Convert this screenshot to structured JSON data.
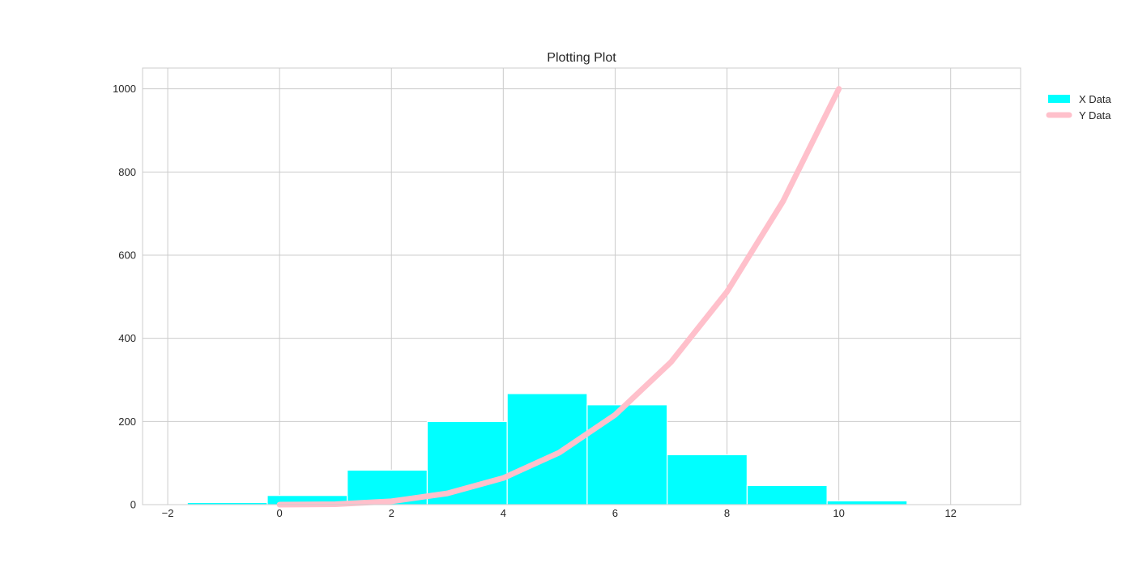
{
  "chart_data": {
    "type": "bar",
    "title": "Plotting Plot",
    "xlabel": "",
    "ylabel": "",
    "xlim": [
      -2.45,
      13.25
    ],
    "ylim": [
      0,
      1050
    ],
    "x_ticks": [
      -2,
      0,
      2,
      4,
      6,
      8,
      10,
      12
    ],
    "x_tick_labels": [
      "−2",
      "0",
      "2",
      "4",
      "6",
      "8",
      "10",
      "12"
    ],
    "y_ticks": [
      0,
      200,
      400,
      600,
      800,
      1000
    ],
    "y_tick_labels": [
      "0",
      "200",
      "400",
      "600",
      "800",
      "1000"
    ],
    "grid": true,
    "legend_position": "outside-top-right",
    "histogram": {
      "name": "X Data",
      "color": "#00ffff",
      "bin_edges": [
        -1.65,
        -0.22,
        1.21,
        2.64,
        4.07,
        5.5,
        6.93,
        8.36,
        9.79,
        11.22
      ],
      "counts": [
        5,
        22,
        83,
        200,
        267,
        240,
        120,
        46,
        9
      ]
    },
    "line": {
      "name": "Y Data",
      "color": "#ffc0cb",
      "x": [
        0,
        1,
        2,
        3,
        4,
        5,
        6,
        7,
        8,
        9,
        10
      ],
      "y": [
        0,
        1,
        8,
        27,
        64,
        125,
        216,
        343,
        512,
        729,
        1000
      ]
    }
  }
}
